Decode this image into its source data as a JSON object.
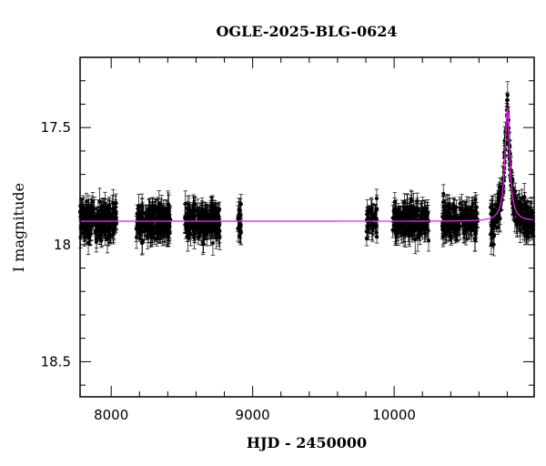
{
  "chart_data": {
    "type": "scatter",
    "title": "OGLE-2025-BLG-0624",
    "xlabel": "HJD - 2450000",
    "ylabel": "I magnitude",
    "xlim": [
      7780,
      10990
    ],
    "ylim": [
      18.65,
      17.2
    ],
    "y_inverted": true,
    "grid": false,
    "legend": "none",
    "x_ticks": [
      8000,
      9000,
      10000
    ],
    "x_tick_labels": [
      "8000",
      "9000",
      "10000"
    ],
    "y_ticks": [
      17.5,
      18,
      18.5
    ],
    "y_tick_labels": [
      "17.5",
      "18",
      "18.5"
    ],
    "colors": {
      "points": "#000000",
      "model": "#ee22ee"
    },
    "series": [
      {
        "kind": "points_with_errorbars",
        "segments": [
          {
            "x_range": [
              7780,
              8040
            ],
            "n_points": 220
          },
          {
            "x_range": [
              8175,
              8420
            ],
            "n_points": 210
          },
          {
            "x_range": [
              8520,
              8770
            ],
            "n_points": 230
          },
          {
            "x_range": [
              8895,
              8920
            ],
            "n_points": 18
          },
          {
            "x_range": [
              9805,
              9880
            ],
            "n_points": 45
          },
          {
            "x_range": [
              9990,
              10245
            ],
            "n_points": 200
          },
          {
            "x_range": [
              10340,
              10590
            ],
            "n_points": 190
          },
          {
            "x_range": [
              10680,
              10990
            ],
            "n_points": 250
          }
        ],
        "baseline_mag": 17.9,
        "typical_error": 0.04,
        "scatter_mag": 0.035
      },
      {
        "kind": "model_curve",
        "baseline_mag": 17.9,
        "peak_mag": 17.42,
        "peak_hjd": 10800,
        "width_days": 20
      }
    ]
  }
}
